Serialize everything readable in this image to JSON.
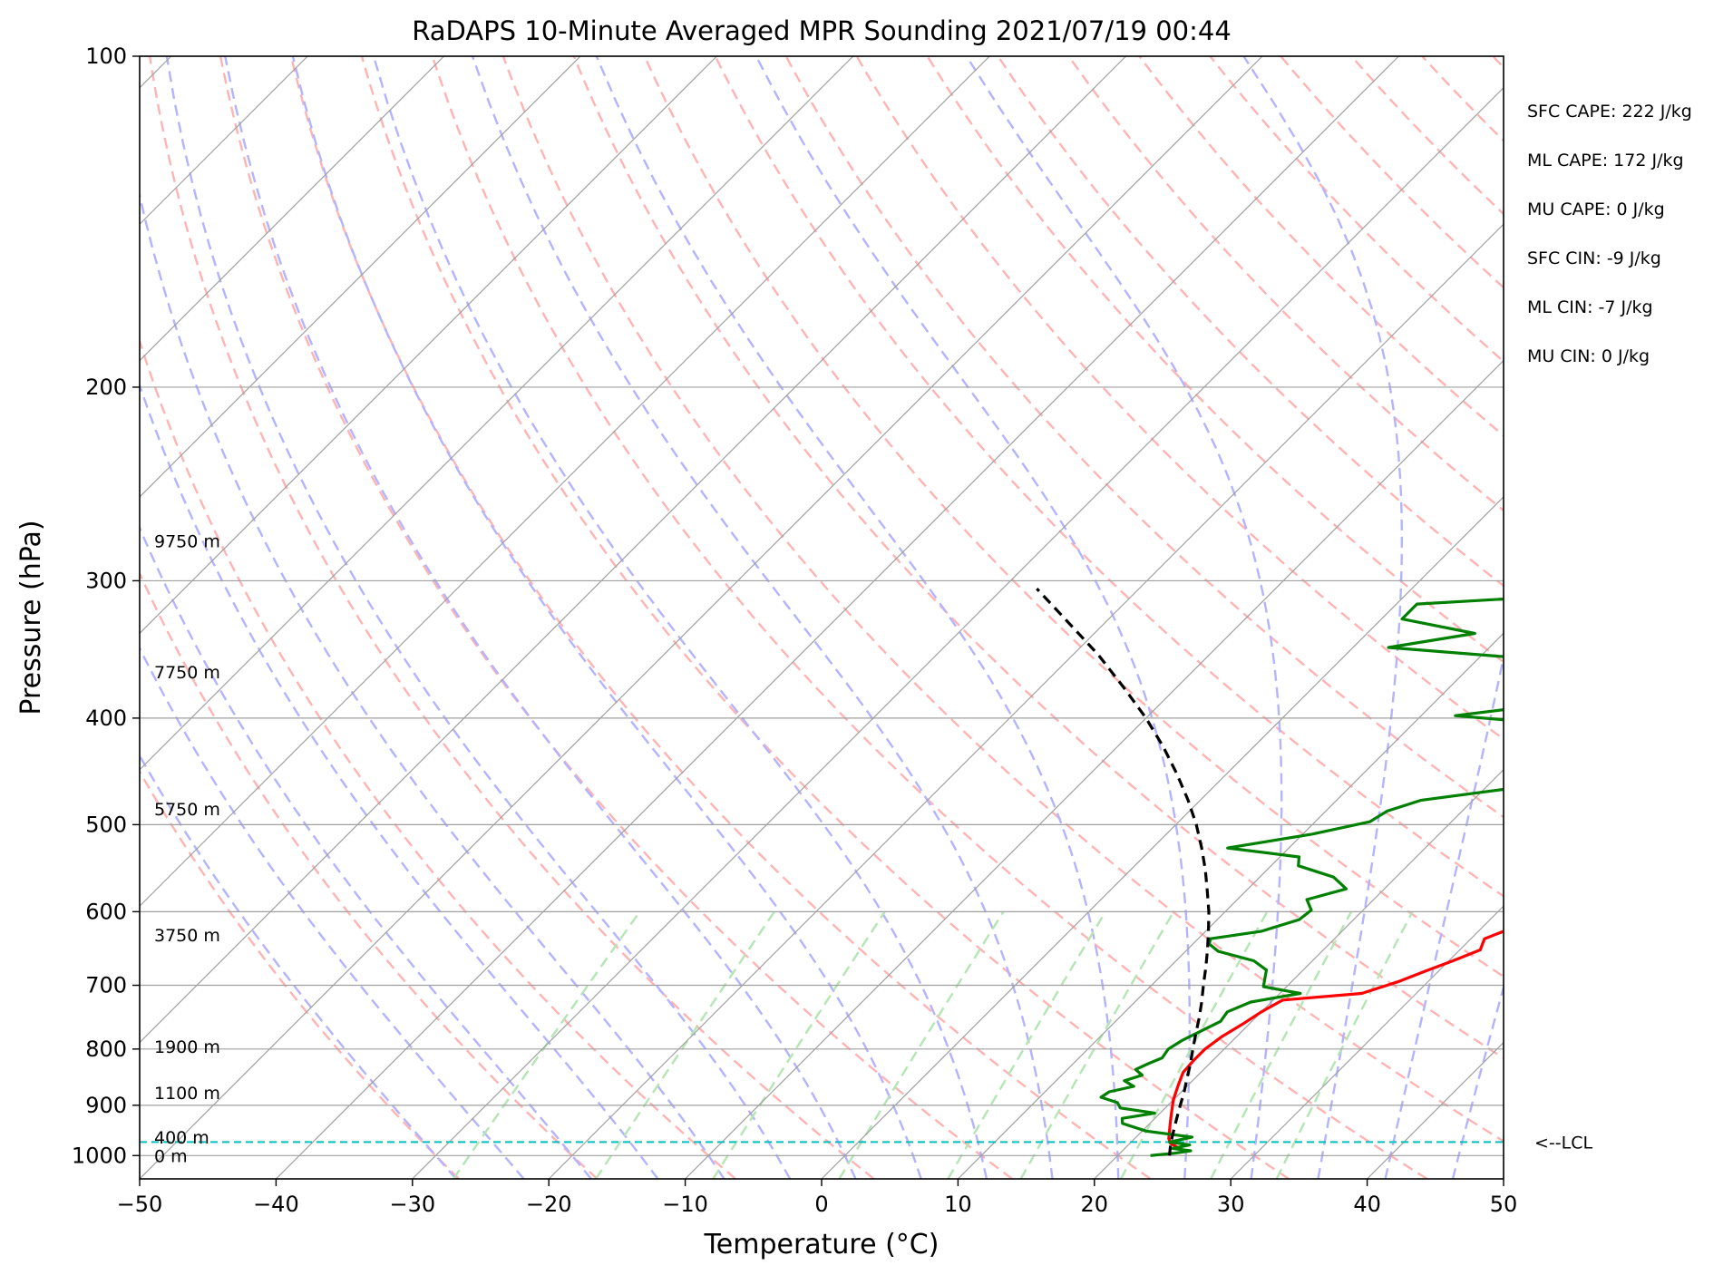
{
  "chart_data": {
    "type": "skew-t",
    "title": "RaDAPS 10-Minute Averaged MPR Sounding 2021/07/19 00:44",
    "xlabel": "Temperature (°C)",
    "ylabel": "Pressure (hPa)",
    "xlim": [
      -50,
      50
    ],
    "ylim": [
      1050,
      100
    ],
    "y_scale": "log",
    "x_ticks": [
      -50,
      -40,
      -30,
      -20,
      -10,
      0,
      10,
      20,
      30,
      40,
      50
    ],
    "x_tick_labels": [
      "−50",
      "−40",
      "−30",
      "−20",
      "−10",
      "0",
      "10",
      "20",
      "30",
      "40",
      "50"
    ],
    "y_ticks": [
      1000,
      900,
      800,
      700,
      600,
      500,
      400,
      300,
      200,
      100
    ],
    "y_tick_labels": [
      "1000",
      "900",
      "800",
      "700",
      "600",
      "500",
      "400",
      "300",
      "200",
      "100"
    ],
    "grid": true,
    "series": [
      {
        "color": "#ff0000",
        "pressure": [
          990,
          985,
          975,
          965,
          950,
          935,
          920,
          905,
          890,
          875,
          860,
          840,
          820,
          800,
          780,
          760,
          740,
          722,
          712,
          695,
          680,
          665,
          650,
          635,
          620,
          600,
          585,
          570,
          555,
          540,
          525,
          510,
          495,
          480,
          465,
          450,
          435,
          420,
          405,
          395,
          385,
          375,
          365,
          355,
          345,
          335,
          325,
          315,
          305
        ],
        "values": [
          24.5,
          24.0,
          23.0,
          22.5,
          22.0,
          21.5,
          21.0,
          20.5,
          20.0,
          19.6,
          19.2,
          18.7,
          18.6,
          18.6,
          18.9,
          19.5,
          20.0,
          20.7,
          26.0,
          27.8,
          29.0,
          30.3,
          31.5,
          31.0,
          32.3,
          34.7,
          33.3,
          33.6,
          33.5,
          33.8,
          30.0,
          30.3,
          29.8,
          29.9,
          29.8,
          29.4,
          27.3,
          24.3,
          21.9,
          21.5,
          20.8,
          21.7,
          22.0,
          22.6,
          23.4,
          24.3,
          21.2,
          20.7,
          21.9
        ]
      },
      {
        "color": "#008000",
        "pressure": [
          1000,
          995,
          990,
          985,
          978,
          972,
          962,
          950,
          935,
          925,
          915,
          905,
          895,
          885,
          875,
          865,
          855,
          845,
          835,
          825,
          815,
          800,
          785,
          770,
          755,
          740,
          725,
          712,
          702,
          690,
          678,
          665,
          652,
          642,
          635,
          625,
          610,
          598,
          585,
          572,
          558,
          545,
          535,
          525,
          510,
          497,
          486,
          475,
          462,
          452,
          440,
          428,
          418,
          408,
          398,
          390,
          382,
          375,
          368,
          362,
          355,
          345,
          335,
          325,
          315,
          305
        ],
        "values": [
          22.4,
          24.0,
          25.0,
          23.5,
          24.5,
          22.8,
          24.1,
          20.3,
          18.0,
          17.6,
          19.6,
          16.7,
          16.1,
          14.5,
          14.7,
          16.1,
          15.0,
          15.9,
          15.0,
          15.5,
          16.1,
          15.9,
          16.3,
          17.0,
          17.7,
          17.5,
          18.5,
          21.5,
          18.3,
          17.8,
          17.3,
          15.7,
          12.4,
          11.2,
          10.9,
          14.1,
          16.0,
          16.2,
          15.1,
          17.2,
          15.4,
          12.0,
          11.4,
          5.5,
          10.7,
          14.0,
          14.5,
          16.2,
          22.6,
          26.7,
          30.5,
          32.5,
          29.0,
          23.5,
          12.5,
          17.5,
          20.5,
          23.0,
          26.1,
          22.2,
          16.1,
          2.6,
          7.9,
          1.5,
          1.5,
          20.0
        ]
      },
      {
        "color": "#000000",
        "pressure": [
          1000,
          975,
          950,
          925,
          900,
          875,
          850,
          825,
          800,
          775,
          750,
          725,
          700,
          675,
          650,
          625,
          600,
          575,
          550,
          525,
          500,
          475,
          450,
          425,
          400,
          375,
          350,
          325,
          305
        ],
        "values": [
          23.8,
          23.0,
          22.3,
          21.6,
          20.9,
          20.2,
          19.4,
          18.6,
          17.7,
          16.8,
          15.9,
          14.9,
          13.8,
          12.7,
          11.5,
          10.2,
          8.8,
          7.2,
          5.5,
          3.6,
          1.5,
          -0.9,
          -3.6,
          -6.6,
          -10.0,
          -13.9,
          -18.2,
          -23.2,
          -27.5
        ]
      }
    ],
    "lcl_pressure": 972,
    "lcl_label": "<--LCL",
    "height_labels": [
      {
        "text": "9750 m",
        "pressure": 276
      },
      {
        "text": "7750 m",
        "pressure": 363
      },
      {
        "text": "5750 m",
        "pressure": 484
      },
      {
        "text": "3750 m",
        "pressure": 630
      },
      {
        "text": "1900 m",
        "pressure": 796
      },
      {
        "text": "1100 m",
        "pressure": 877
      },
      {
        "text": "400 m",
        "pressure": 962
      },
      {
        "text": "0 m",
        "pressure": 1000
      }
    ],
    "stats": [
      "SFC CAPE: 222 J/kg",
      "ML CAPE: 172 J/kg",
      "MU CAPE: 0 J/kg",
      "SFC CIN: -9 J/kg",
      "ML CIN: -7 J/kg",
      "MU CIN: 0 J/kg"
    ],
    "colors": {
      "isotherm": "#a0a0a0",
      "isobar": "#a0a0a0",
      "dry_adiabat": "#ffb3b3",
      "moist_adiabat": "#b3b3ff",
      "mixing_ratio": "#b3e6b3",
      "lcl_line": "#00bfbf"
    }
  }
}
